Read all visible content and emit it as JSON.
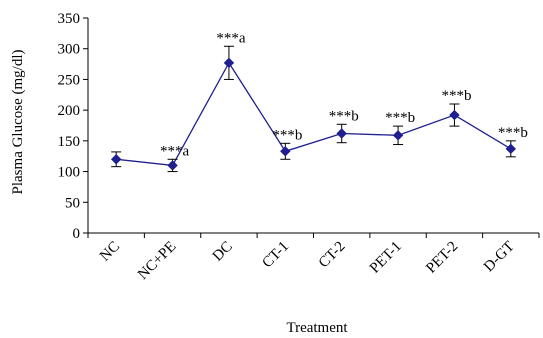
{
  "chart_data": {
    "type": "line",
    "title": "",
    "xlabel": "Treatment",
    "ylabel": "Plasma Glucose (mg/dl)",
    "ylim": [
      0,
      350
    ],
    "yticks": [
      0,
      50,
      100,
      150,
      200,
      250,
      300,
      350
    ],
    "grid": false,
    "categories": [
      "NC",
      "NC+PE",
      "DC",
      "CT-1",
      "CT-2",
      "PET-1",
      "PET-2",
      "D-GT"
    ],
    "series": [
      {
        "values": [
          120,
          110,
          277,
          133,
          162,
          159,
          192,
          137
        ],
        "errors": [
          12,
          10,
          27,
          13,
          15,
          15,
          18,
          13
        ],
        "color": "#1f1f8f"
      }
    ],
    "annotations": [
      "",
      "***a",
      "***a",
      "***b",
      "***b",
      "***b",
      "***b",
      "***b"
    ]
  }
}
